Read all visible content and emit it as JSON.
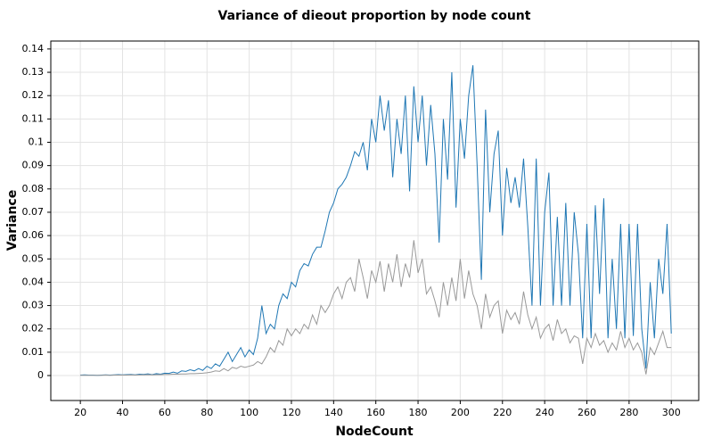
{
  "chart_data": {
    "type": "line",
    "title": "Variance of dieout proportion by node count",
    "x_label": "NodeCount",
    "y_label": "Variance",
    "x": [
      20,
      22,
      24,
      26,
      28,
      30,
      32,
      34,
      36,
      38,
      40,
      42,
      44,
      46,
      48,
      50,
      52,
      54,
      56,
      58,
      60,
      62,
      64,
      66,
      68,
      70,
      72,
      74,
      76,
      78,
      80,
      82,
      84,
      86,
      88,
      90,
      92,
      94,
      96,
      98,
      100,
      102,
      104,
      106,
      108,
      110,
      112,
      114,
      116,
      118,
      120,
      122,
      124,
      126,
      128,
      130,
      132,
      134,
      136,
      138,
      140,
      142,
      144,
      146,
      148,
      150,
      152,
      154,
      156,
      158,
      160,
      162,
      164,
      166,
      168,
      170,
      172,
      174,
      176,
      178,
      180,
      182,
      184,
      186,
      188,
      190,
      192,
      194,
      196,
      198,
      200,
      202,
      204,
      206,
      208,
      210,
      212,
      214,
      216,
      218,
      220,
      222,
      224,
      226,
      228,
      230,
      232,
      234,
      236,
      238,
      240,
      242,
      244,
      246,
      248,
      250,
      252,
      254,
      256,
      258,
      260,
      262,
      264,
      266,
      268,
      270,
      272,
      274,
      276,
      278,
      280,
      282,
      284,
      286,
      288,
      290,
      292,
      294,
      296,
      298,
      300
    ],
    "series": [
      {
        "color": "#1f77b4",
        "values": [
          0.0002,
          0.0003,
          0.0002,
          0.0002,
          0.0001,
          0.0002,
          0.0003,
          0.0002,
          0.0003,
          0.0004,
          0.0003,
          0.0004,
          0.0005,
          0.0003,
          0.0006,
          0.0005,
          0.0007,
          0.0004,
          0.0008,
          0.0006,
          0.001,
          0.0009,
          0.0015,
          0.001,
          0.002,
          0.0018,
          0.0025,
          0.002,
          0.003,
          0.0022,
          0.004,
          0.003,
          0.005,
          0.004,
          0.007,
          0.01,
          0.006,
          0.009,
          0.012,
          0.008,
          0.011,
          0.009,
          0.016,
          0.03,
          0.018,
          0.022,
          0.02,
          0.03,
          0.035,
          0.033,
          0.04,
          0.038,
          0.045,
          0.048,
          0.047,
          0.052,
          0.055,
          0.055,
          0.062,
          0.07,
          0.074,
          0.08,
          0.082,
          0.085,
          0.09,
          0.096,
          0.094,
          0.1,
          0.088,
          0.11,
          0.1,
          0.12,
          0.105,
          0.118,
          0.085,
          0.11,
          0.095,
          0.12,
          0.079,
          0.124,
          0.1,
          0.12,
          0.09,
          0.116,
          0.095,
          0.057,
          0.11,
          0.084,
          0.13,
          0.072,
          0.11,
          0.093,
          0.12,
          0.133,
          0.09,
          0.041,
          0.114,
          0.07,
          0.095,
          0.105,
          0.06,
          0.089,
          0.074,
          0.085,
          0.072,
          0.093,
          0.064,
          0.03,
          0.093,
          0.03,
          0.07,
          0.087,
          0.03,
          0.068,
          0.03,
          0.074,
          0.03,
          0.07,
          0.052,
          0.016,
          0.065,
          0.016,
          0.073,
          0.035,
          0.076,
          0.016,
          0.05,
          0.02,
          0.065,
          0.016,
          0.065,
          0.017,
          0.065,
          0.02,
          0.003,
          0.04,
          0.016,
          0.05,
          0.035,
          0.065,
          0.018
        ]
      },
      {
        "color": "#999999",
        "values": [
          0.0001,
          0.0001,
          0.0001,
          0.0001,
          0.0001,
          0.0001,
          0.0002,
          0.0001,
          0.0002,
          0.0002,
          0.0002,
          0.0002,
          0.0003,
          0.0002,
          0.0003,
          0.0003,
          0.0004,
          0.0003,
          0.0004,
          0.0004,
          0.0005,
          0.0005,
          0.0006,
          0.0006,
          0.0007,
          0.0007,
          0.0008,
          0.0008,
          0.0009,
          0.001,
          0.0012,
          0.0015,
          0.002,
          0.0018,
          0.003,
          0.002,
          0.0035,
          0.003,
          0.004,
          0.0035,
          0.004,
          0.0045,
          0.006,
          0.005,
          0.008,
          0.012,
          0.01,
          0.015,
          0.013,
          0.02,
          0.017,
          0.02,
          0.018,
          0.022,
          0.02,
          0.026,
          0.022,
          0.03,
          0.027,
          0.03,
          0.035,
          0.038,
          0.033,
          0.04,
          0.042,
          0.036,
          0.05,
          0.042,
          0.033,
          0.045,
          0.04,
          0.049,
          0.036,
          0.048,
          0.04,
          0.052,
          0.038,
          0.048,
          0.042,
          0.058,
          0.044,
          0.05,
          0.035,
          0.038,
          0.032,
          0.025,
          0.04,
          0.03,
          0.042,
          0.032,
          0.05,
          0.033,
          0.045,
          0.035,
          0.03,
          0.02,
          0.035,
          0.025,
          0.03,
          0.032,
          0.018,
          0.028,
          0.024,
          0.027,
          0.022,
          0.036,
          0.026,
          0.02,
          0.025,
          0.016,
          0.02,
          0.022,
          0.015,
          0.024,
          0.018,
          0.02,
          0.014,
          0.017,
          0.016,
          0.005,
          0.016,
          0.012,
          0.018,
          0.013,
          0.015,
          0.01,
          0.014,
          0.011,
          0.019,
          0.012,
          0.016,
          0.011,
          0.014,
          0.01,
          0.0005,
          0.012,
          0.009,
          0.014,
          0.019,
          0.012,
          0.012
        ]
      }
    ],
    "xlim": [
      6,
      313
    ],
    "xticks": [
      20,
      40,
      60,
      80,
      100,
      120,
      140,
      160,
      180,
      200,
      220,
      240,
      260,
      280,
      300
    ],
    "ylim": [
      -0.0107,
      0.1434
    ],
    "yticks": [
      0,
      0.01,
      0.02,
      0.03,
      0.04,
      0.05,
      0.06,
      0.07,
      0.08,
      0.09,
      0.1,
      0.11,
      0.12,
      0.13,
      0.14
    ],
    "grid": true
  }
}
